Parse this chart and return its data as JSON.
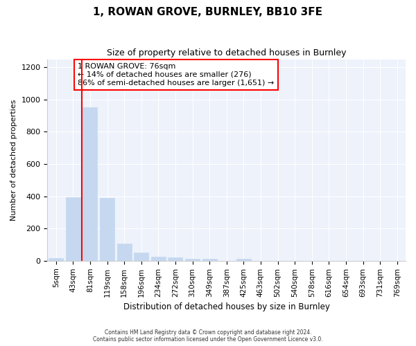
{
  "title": "1, ROWAN GROVE, BURNLEY, BB10 3FE",
  "subtitle": "Size of property relative to detached houses in Burnley",
  "xlabel": "Distribution of detached houses by size in Burnley",
  "ylabel": "Number of detached properties",
  "bar_labels": [
    "5sqm",
    "43sqm",
    "81sqm",
    "119sqm",
    "158sqm",
    "196sqm",
    "234sqm",
    "272sqm",
    "310sqm",
    "349sqm",
    "387sqm",
    "425sqm",
    "463sqm",
    "502sqm",
    "540sqm",
    "578sqm",
    "616sqm",
    "654sqm",
    "693sqm",
    "731sqm",
    "769sqm"
  ],
  "bar_values": [
    15,
    395,
    950,
    390,
    105,
    50,
    25,
    20,
    12,
    10,
    0,
    12,
    0,
    0,
    0,
    0,
    0,
    0,
    0,
    0,
    0
  ],
  "bar_color": "#c5d8f0",
  "bar_edge_color": "#c5d8f0",
  "vline_color": "red",
  "annotation_text": "1 ROWAN GROVE: 76sqm\n← 14% of detached houses are smaller (276)\n86% of semi-detached houses are larger (1,651) →",
  "annotation_box_color": "white",
  "annotation_box_edgecolor": "red",
  "ylim": [
    0,
    1250
  ],
  "yticks": [
    0,
    200,
    400,
    600,
    800,
    1000,
    1200
  ],
  "footnote": "Contains HM Land Registry data © Crown copyright and database right 2024.\nContains public sector information licensed under the Open Government Licence v3.0.",
  "background_color": "#ffffff",
  "axes_background_color": "#edf2fb",
  "grid_color": "#ffffff"
}
